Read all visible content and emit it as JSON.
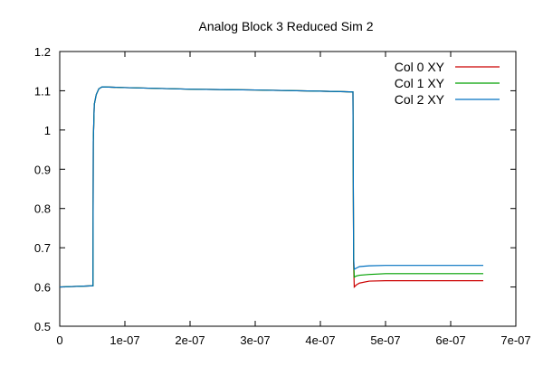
{
  "chart_data": {
    "type": "line",
    "title": "Analog Block 3 Reduced Sim 2",
    "xlabel": "",
    "ylabel": "",
    "xlim": [
      0,
      7e-07
    ],
    "ylim": [
      0.5,
      1.2
    ],
    "x_ticks": [
      0,
      1e-07,
      2e-07,
      3e-07,
      4e-07,
      5e-07,
      6e-07,
      7e-07
    ],
    "x_tick_labels": [
      "0",
      "1e-07",
      "2e-07",
      "3e-07",
      "4e-07",
      "5e-07",
      "6e-07",
      "7e-07"
    ],
    "y_ticks": [
      0.5,
      0.6,
      0.7,
      0.8,
      0.9,
      1.0,
      1.1,
      1.2
    ],
    "y_tick_labels": [
      "0.5",
      "0.6",
      "0.7",
      "0.8",
      "0.9",
      "1",
      "1.1",
      "1.2"
    ],
    "grid": false,
    "legend": "top-right",
    "series": [
      {
        "name": "Col 0 XY",
        "color": "#cc0000",
        "x": [
          0,
          5.1e-08,
          5.15e-08,
          5.3e-08,
          5.6e-08,
          6e-08,
          6.5e-08,
          1e-07,
          2e-07,
          3e-07,
          4e-07,
          4.5e-07,
          4.51e-07,
          4.52e-07,
          4.55e-07,
          4.6e-07,
          4.75e-07,
          5e-07,
          6.5e-07
        ],
        "y": [
          0.6,
          0.603,
          0.97,
          1.065,
          1.09,
          1.105,
          1.11,
          1.108,
          1.104,
          1.102,
          1.099,
          1.097,
          0.66,
          0.6,
          0.605,
          0.61,
          0.615,
          0.616,
          0.616
        ]
      },
      {
        "name": "Col 1 XY",
        "color": "#00a000",
        "x": [
          0,
          5.1e-08,
          5.15e-08,
          5.3e-08,
          5.6e-08,
          6e-08,
          6.5e-08,
          1e-07,
          2e-07,
          3e-07,
          4e-07,
          4.5e-07,
          4.51e-07,
          4.52e-07,
          4.55e-07,
          4.6e-07,
          4.75e-07,
          5e-07,
          6.5e-07
        ],
        "y": [
          0.6,
          0.603,
          0.97,
          1.065,
          1.09,
          1.105,
          1.11,
          1.108,
          1.104,
          1.102,
          1.099,
          1.097,
          0.67,
          0.625,
          0.628,
          0.63,
          0.632,
          0.634,
          0.634
        ]
      },
      {
        "name": "Col 2 XY",
        "color": "#0070c0",
        "x": [
          0,
          5.1e-08,
          5.15e-08,
          5.3e-08,
          5.6e-08,
          6e-08,
          6.5e-08,
          1e-07,
          2e-07,
          3e-07,
          4e-07,
          4.5e-07,
          4.51e-07,
          4.52e-07,
          4.55e-07,
          4.6e-07,
          4.75e-07,
          5e-07,
          6.5e-07
        ],
        "y": [
          0.6,
          0.603,
          0.97,
          1.065,
          1.09,
          1.105,
          1.11,
          1.108,
          1.104,
          1.102,
          1.099,
          1.097,
          0.675,
          0.645,
          0.648,
          0.652,
          0.654,
          0.655,
          0.655
        ]
      }
    ]
  }
}
